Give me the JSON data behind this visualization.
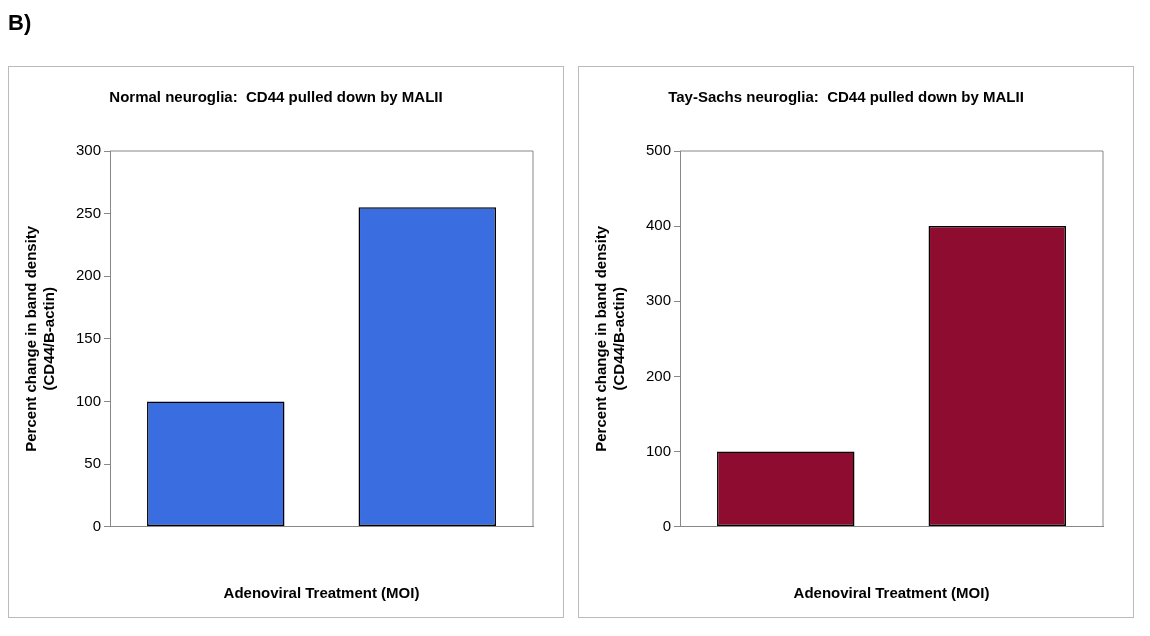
{
  "chart_data": [
    {
      "type": "bar",
      "title": "Normal neuroglia:  CD44 pulled down by MALII",
      "xlabel": "Adenoviral Treatment (MOI)",
      "ylabel": "Percent change in band density\n(CD44/B-actin)",
      "categories": [
        null,
        null
      ],
      "values": [
        100,
        255
      ],
      "color": "#3a6ee0",
      "ylim": [
        0,
        300
      ],
      "yticks": [
        0,
        50,
        100,
        150,
        200,
        250,
        300
      ],
      "annotations": [
        "B)"
      ]
    },
    {
      "type": "bar",
      "title": "Tay-Sachs neuroglia:  CD44 pulled down by MALII",
      "xlabel": "Adenoviral Treatment (MOI)",
      "ylabel": "Percent change in band density\n(CD44/B-actin)",
      "categories": [
        null,
        null
      ],
      "values": [
        100,
        400
      ],
      "color": "#8e0c30",
      "ylim": [
        0,
        500
      ],
      "yticks": [
        0,
        100,
        200,
        300,
        400,
        500
      ]
    }
  ]
}
